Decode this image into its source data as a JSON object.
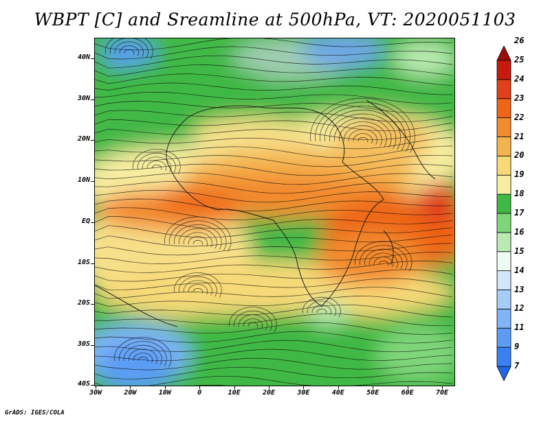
{
  "title": "WBPT [C] and Sreamline at 500hPa, VT: 2020051103",
  "footer": "GrADS: IGES/COLA",
  "lat_labels": [
    "40N",
    "30N",
    "20N",
    "10N",
    "EQ",
    "10S",
    "20S",
    "30S",
    "40S"
  ],
  "lon_labels": [
    "30W",
    "20W",
    "10W",
    "0",
    "10E",
    "20E",
    "30E",
    "40E",
    "50E",
    "60E",
    "70E"
  ],
  "colorbar": {
    "levels": [
      "7",
      "9",
      "11",
      "12",
      "13",
      "14",
      "15",
      "16",
      "17",
      "18",
      "19",
      "20",
      "21",
      "22",
      "23",
      "24",
      "25",
      "26"
    ],
    "colors": [
      "#2166e8",
      "#3a80f0",
      "#5c9cf4",
      "#7fb4f6",
      "#a6cdf8",
      "#cfe6fb",
      "#effaf2",
      "#b9eab0",
      "#7fd679",
      "#3fb845",
      "#f7eda0",
      "#f7d978",
      "#f4b350",
      "#f28a2e",
      "#ee6518",
      "#e2401a",
      "#c91a10",
      "#9c0c06"
    ]
  }
}
